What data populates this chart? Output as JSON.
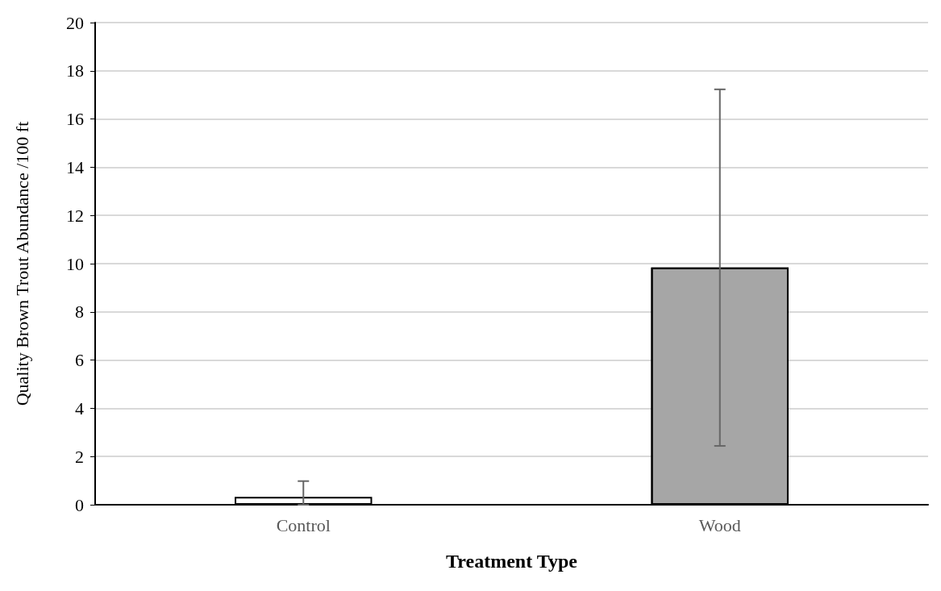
{
  "chart_data": {
    "type": "bar",
    "xlabel": "Treatment Type",
    "ylabel": "Quality Brown Trout Abundance /100 ft",
    "categories": [
      "Control",
      "Wood"
    ],
    "values": [
      0.33,
      9.84
    ],
    "colors": [
      "#ffffff",
      "#a6a6a6"
    ],
    "errors": [
      [
        0,
        0.98
      ],
      [
        2.44,
        17.23
      ]
    ],
    "ylim": [
      0,
      20
    ],
    "yticks": [
      0,
      2,
      4,
      6,
      8,
      10,
      12,
      14,
      16,
      18,
      20
    ],
    "grid": "y"
  }
}
